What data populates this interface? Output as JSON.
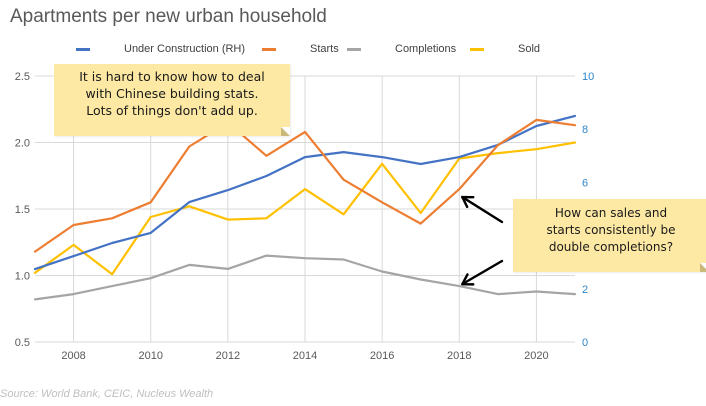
{
  "chart_data": {
    "type": "line",
    "title": "Apartments per new urban household",
    "xlabel": "",
    "ylabel": "",
    "y2label": "",
    "x": [
      2007,
      2008,
      2009,
      2010,
      2011,
      2012,
      2013,
      2014,
      2015,
      2016,
      2017,
      2018,
      2019,
      2020,
      2021
    ],
    "x_ticks": [
      "2008",
      "2010",
      "2012",
      "2014",
      "2016",
      "2018",
      "2020"
    ],
    "x_tick_values": [
      2008,
      2010,
      2012,
      2014,
      2016,
      2018,
      2020
    ],
    "xlim": [
      2007,
      2021
    ],
    "ylim": [
      0.5,
      2.5
    ],
    "y_ticks": [
      "0.5",
      "1.0",
      "1.5",
      "2.0",
      "2.5"
    ],
    "y_tick_values": [
      0.5,
      1.0,
      1.5,
      2.0,
      2.5
    ],
    "y2lim": [
      0,
      10
    ],
    "y2_ticks": [
      "0",
      "2",
      "4",
      "6",
      "8",
      "10"
    ],
    "y2_tick_values": [
      0,
      2,
      4,
      6,
      8,
      10
    ],
    "grid": true,
    "legend_position": "top-center",
    "series": [
      {
        "name": "Under Construction (RH)",
        "axis": "right",
        "color": "#4472c4",
        "values": [
          2.74,
          3.23,
          3.72,
          4.1,
          5.26,
          5.71,
          6.24,
          6.95,
          7.14,
          6.95,
          6.69,
          6.95,
          7.41,
          8.12,
          8.5
        ]
      },
      {
        "name": "Starts",
        "axis": "left",
        "color": "#ed7d31",
        "values": [
          1.18,
          1.38,
          1.43,
          1.55,
          1.97,
          2.15,
          1.9,
          2.08,
          1.72,
          1.55,
          1.39,
          1.65,
          1.98,
          2.17,
          2.13
        ]
      },
      {
        "name": "Completions",
        "axis": "left",
        "color": "#a5a5a5",
        "values": [
          0.82,
          0.86,
          0.92,
          0.98,
          1.08,
          1.05,
          1.15,
          1.13,
          1.12,
          1.03,
          0.97,
          0.92,
          0.86,
          0.88,
          0.86
        ]
      },
      {
        "name": "Sold",
        "axis": "left",
        "color": "#ffc000",
        "values": [
          1.02,
          1.23,
          1.01,
          1.44,
          1.52,
          1.42,
          1.43,
          1.65,
          1.46,
          1.84,
          1.47,
          1.88,
          1.92,
          1.95,
          2.0
        ]
      }
    ],
    "annotations": [
      {
        "id": "note-hard-to-know",
        "text_lines": [
          "It is hard to know how to deal",
          "with Chinese building stats.",
          "Lots of things don't add up."
        ]
      },
      {
        "id": "note-sales-starts",
        "text_lines": [
          "How can sales and",
          "starts consistently be",
          "double completions?"
        ],
        "arrows_point_to": [
          {
            "series": "Starts",
            "x": 2018
          },
          {
            "series": "Completions",
            "x": 2018
          }
        ]
      }
    ],
    "source": "Source: World Bank, CEIC, Nucleus Wealth"
  },
  "colors": {
    "left_tick_text": "#595959",
    "right_tick_text": "#2e86c9",
    "grid": "#d9d9d9",
    "note_fill": "#fde9a4",
    "source_text": "#bfbfbf",
    "arrow": "#000000"
  }
}
